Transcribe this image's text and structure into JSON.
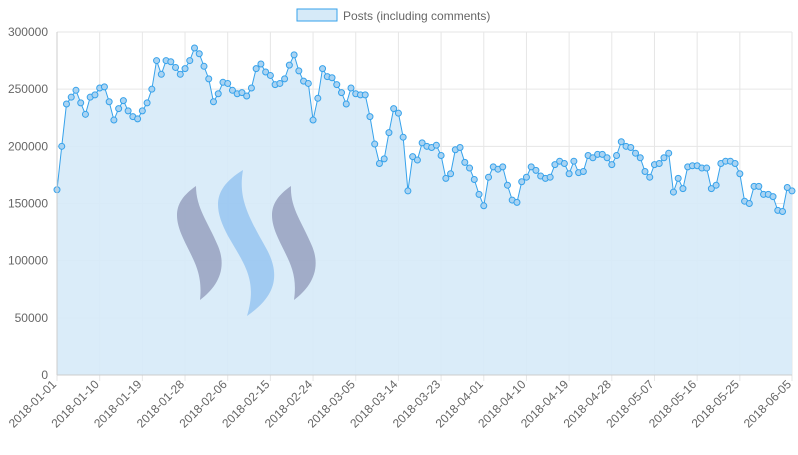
{
  "colors": {
    "line": "#36a2eb",
    "fill": "#d6eaf8",
    "point_fill": "#a9d3f2",
    "grid": "#e6e6e6",
    "axis_text": "#666666",
    "legend_text": "#666666",
    "watermark_blue": "#8ec0f0",
    "watermark_gray": "#9aa6c4"
  },
  "icons": [
    "steem-logo-watermark"
  ],
  "chart_data": {
    "type": "area",
    "title": "",
    "xlabel": "",
    "ylabel": "",
    "legend": {
      "position": "top-center",
      "labels": [
        "Posts (including comments)"
      ]
    },
    "grid": true,
    "ylim": [
      0,
      300000
    ],
    "y_ticks": [
      "0",
      "50000",
      "100000",
      "150000",
      "200000",
      "250000",
      "300000"
    ],
    "x_tick_labels": [
      "2018-01-01",
      "2018-01-10",
      "2018-01-19",
      "2018-01-28",
      "2018-02-06",
      "2018-02-15",
      "2018-02-24",
      "2018-03-05",
      "2018-03-14",
      "2018-03-23",
      "2018-04-01",
      "2018-04-10",
      "2018-04-19",
      "2018-04-28",
      "2018-05-07",
      "2018-05-16",
      "2018-05-25",
      "2018-06-05"
    ],
    "x_start": "2018-01-01",
    "x_end": "2018-06-05",
    "series": [
      {
        "name": "Posts (including comments)",
        "values": [
          162000,
          200000,
          237000,
          243000,
          249000,
          238000,
          228000,
          243000,
          245000,
          251000,
          252000,
          239000,
          223000,
          233000,
          240000,
          231000,
          226000,
          224000,
          231000,
          238000,
          250000,
          275000,
          263000,
          275000,
          274000,
          269000,
          263000,
          268000,
          275000,
          286000,
          281000,
          270000,
          259000,
          239000,
          246000,
          256000,
          255000,
          249000,
          246000,
          247000,
          244000,
          251000,
          268000,
          272000,
          265000,
          262000,
          254000,
          255000,
          259000,
          271000,
          280000,
          266000,
          257000,
          255000,
          223000,
          242000,
          268000,
          261000,
          260000,
          254000,
          247000,
          237000,
          251000,
          246000,
          245000,
          245000,
          226000,
          202000,
          185000,
          189000,
          212000,
          233000,
          229000,
          208000,
          161000,
          191000,
          188000,
          203000,
          200000,
          199000,
          201000,
          192000,
          172000,
          176000,
          197000,
          199000,
          186000,
          181000,
          171000,
          158000,
          148000,
          173000,
          182000,
          180000,
          182000,
          166000,
          153000,
          151000,
          169000,
          173000,
          182000,
          179000,
          174000,
          172000,
          173000,
          184000,
          187000,
          185000,
          176000,
          187000,
          177000,
          178000,
          192000,
          190000,
          193000,
          193000,
          190000,
          184000,
          192000,
          204000,
          200000,
          199000,
          194000,
          190000,
          178000,
          173000,
          184000,
          185000,
          190000,
          194000,
          160000,
          172000,
          163000,
          182000,
          183000,
          183000,
          181000,
          181000,
          163000,
          166000,
          185000,
          187000,
          187000,
          185000,
          176000,
          152000,
          150000,
          165000,
          165000,
          158000,
          158000,
          156000,
          144000,
          143000,
          164000,
          161000
        ]
      }
    ]
  }
}
